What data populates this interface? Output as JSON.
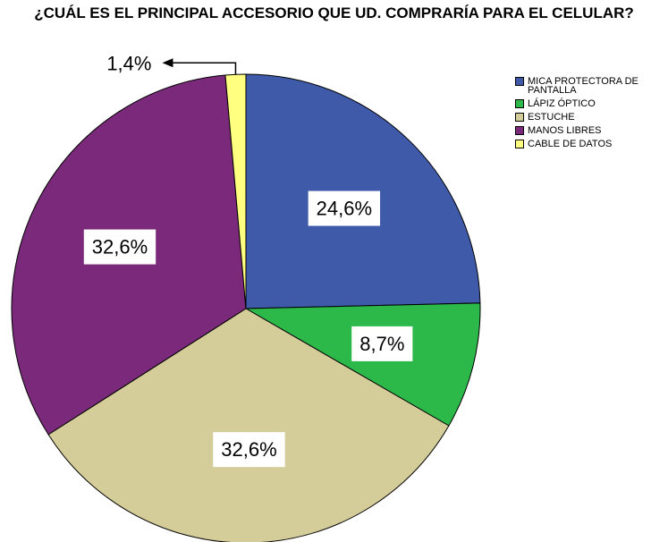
{
  "chart_data": {
    "type": "pie",
    "title": "¿CUÁL ES EL PRINCIPAL ACCESORIO QUE UD. COMPRARÍA PARA EL CELULAR?",
    "categories": [
      "MICA PROTECTORA DE PANTALLA",
      "LÁPIZ ÓPTICO",
      "ESTUCHE",
      "MANOS LIBRES",
      "CABLE DE DATOS"
    ],
    "values": [
      24.6,
      8.7,
      32.6,
      32.6,
      1.4
    ],
    "value_labels": [
      "24,6%",
      "8,7%",
      "32,6%",
      "32,6%",
      "1,4%"
    ],
    "colors": [
      "#3f5aa9",
      "#2db84a",
      "#d4cd99",
      "#7b2a7b",
      "#ffff80"
    ],
    "legend": "right"
  }
}
